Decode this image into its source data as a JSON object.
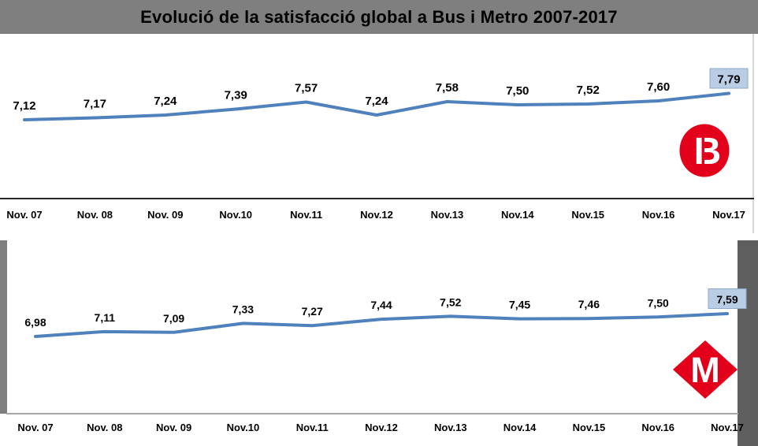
{
  "title": "Evolució de la satisfacció global a Bus i Metro 2007-2017",
  "chart_data": [
    {
      "type": "line",
      "name": "Bus",
      "categories": [
        "Nov. 07",
        "Nov. 08",
        "Nov. 09",
        "Nov.10",
        "Nov.11",
        "Nov.12",
        "Nov.13",
        "Nov.14",
        "Nov.15",
        "Nov.16",
        "Nov.17"
      ],
      "values": [
        7.12,
        7.17,
        7.24,
        7.39,
        7.57,
        7.24,
        7.58,
        7.5,
        7.52,
        7.6,
        7.79
      ],
      "point_labels": [
        "7,12",
        "7,17",
        "7,24",
        "7,39",
        "7,57",
        "7,24",
        "7,58",
        "7,50",
        "7,52",
        "7,60",
        "7,79"
      ],
      "highlight_last_point": true,
      "grid": false,
      "value_axis_visible": false,
      "legend": "none",
      "ylim": [
        6.9,
        8.0
      ]
    },
    {
      "type": "line",
      "name": "Metro",
      "categories": [
        "Nov. 07",
        "Nov. 08",
        "Nov. 09",
        "Nov.10",
        "Nov.11",
        "Nov.12",
        "Nov.13",
        "Nov.14",
        "Nov.15",
        "Nov.16",
        "Nov.17"
      ],
      "values": [
        6.98,
        7.11,
        7.09,
        7.33,
        7.27,
        7.44,
        7.52,
        7.45,
        7.46,
        7.5,
        7.59
      ],
      "point_labels": [
        "6,98",
        "7,11",
        "7,09",
        "7,33",
        "7,27",
        "7,44",
        "7,52",
        "7,45",
        "7,46",
        "7,50",
        "7,59"
      ],
      "highlight_last_point": true,
      "grid": false,
      "value_axis_visible": false,
      "legend": "none",
      "ylim": [
        6.9,
        7.8
      ]
    }
  ],
  "logos": {
    "bus_letter": "B",
    "metro_letter": "M"
  },
  "colors": {
    "line_blue": "#4F81BD",
    "highlight_fill": "#B9CDE4",
    "highlight_border": "#8EA9C9",
    "brand_red": "#E2001A",
    "title_bar_gray": "#7F7F7F",
    "axis_dark": "#262626",
    "axis_light": "#A6A6A6",
    "label_text": "#000000"
  }
}
